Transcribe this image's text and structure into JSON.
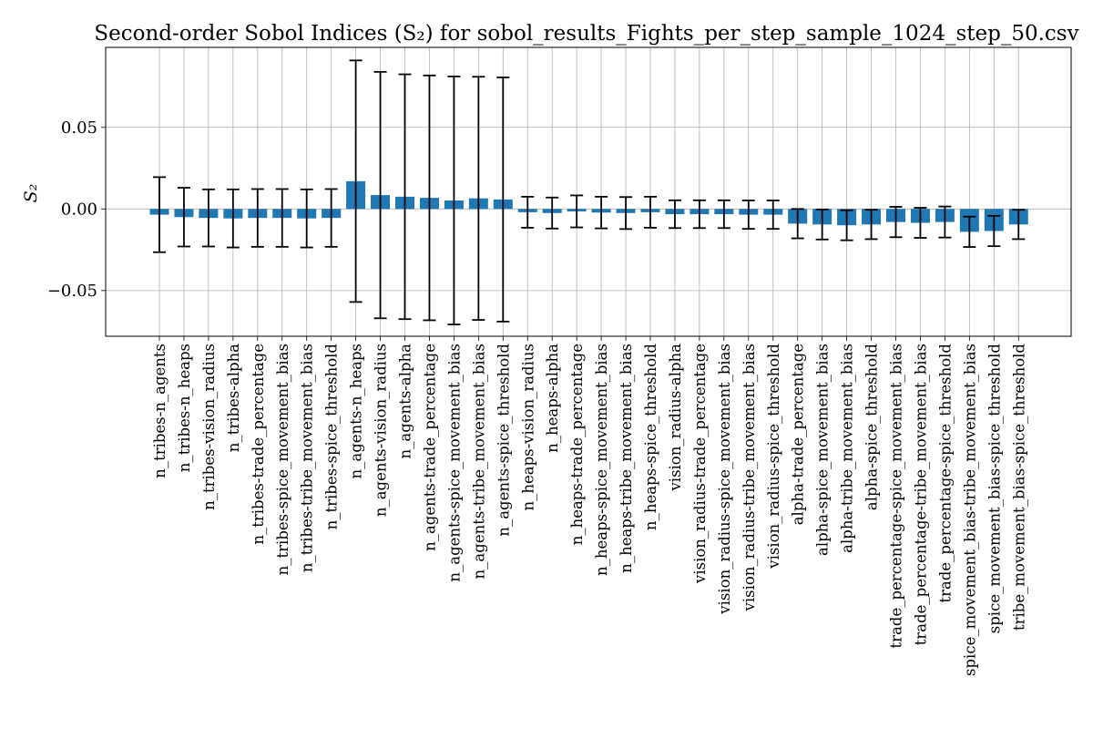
{
  "chart_data": {
    "type": "bar",
    "title": "Second-order Sobol Indices (S₂) for sobol_results_Fights_per_step_sample_1024_step_50.csv",
    "xlabel": "",
    "ylabel": "S₂",
    "ylim": [
      -0.078,
      0.099
    ],
    "yticks": [
      -0.05,
      0.0,
      0.05
    ],
    "ytick_labels": [
      "−0.05",
      "0.00",
      "0.05"
    ],
    "grid": true,
    "bar_color": "#1f77b4",
    "categories": [
      "n_tribes-n_agents",
      "n_tribes-n_heaps",
      "n_tribes-vision_radius",
      "n_tribes-alpha",
      "n_tribes-trade_percentage",
      "n_tribes-spice_movement_bias",
      "n_tribes-tribe_movement_bias",
      "n_tribes-spice_threshold",
      "n_agents-n_heaps",
      "n_agents-vision_radius",
      "n_agents-alpha",
      "n_agents-trade_percentage",
      "n_agents-spice_movement_bias",
      "n_agents-tribe_movement_bias",
      "n_agents-spice_threshold",
      "n_heaps-vision_radius",
      "n_heaps-alpha",
      "n_heaps-trade_percentage",
      "n_heaps-spice_movement_bias",
      "n_heaps-tribe_movement_bias",
      "n_heaps-spice_threshold",
      "vision_radius-alpha",
      "vision_radius-trade_percentage",
      "vision_radius-spice_movement_bias",
      "vision_radius-tribe_movement_bias",
      "vision_radius-spice_threshold",
      "alpha-trade_percentage",
      "alpha-spice_movement_bias",
      "alpha-tribe_movement_bias",
      "alpha-spice_threshold",
      "trade_percentage-spice_movement_bias",
      "trade_percentage-tribe_movement_bias",
      "trade_percentage-spice_threshold",
      "spice_movement_bias-tribe_movement_bias",
      "spice_movement_bias-spice_threshold",
      "tribe_movement_bias-spice_threshold"
    ],
    "values": [
      -0.0035,
      -0.005,
      -0.0055,
      -0.0058,
      -0.0055,
      -0.0055,
      -0.0058,
      -0.0055,
      0.017,
      0.0085,
      0.0075,
      0.0068,
      0.0052,
      0.0065,
      0.0058,
      -0.002,
      -0.0025,
      -0.0015,
      -0.0022,
      -0.0025,
      -0.002,
      -0.0032,
      -0.0032,
      -0.0032,
      -0.0035,
      -0.0035,
      -0.009,
      -0.0095,
      -0.01,
      -0.0095,
      -0.008,
      -0.0085,
      -0.008,
      -0.014,
      -0.0135,
      -0.0095
    ],
    "errors": [
      0.023,
      0.018,
      0.0175,
      0.0178,
      0.0177,
      0.0177,
      0.0178,
      0.0177,
      0.074,
      0.0755,
      0.075,
      0.075,
      0.076,
      0.0745,
      0.0748,
      0.0095,
      0.0095,
      0.0098,
      0.0097,
      0.0098,
      0.0095,
      0.0085,
      0.0085,
      0.0085,
      0.0087,
      0.0087,
      0.009,
      0.0092,
      0.0092,
      0.009,
      0.0093,
      0.0092,
      0.0095,
      0.0093,
      0.0093,
      0.009
    ]
  }
}
